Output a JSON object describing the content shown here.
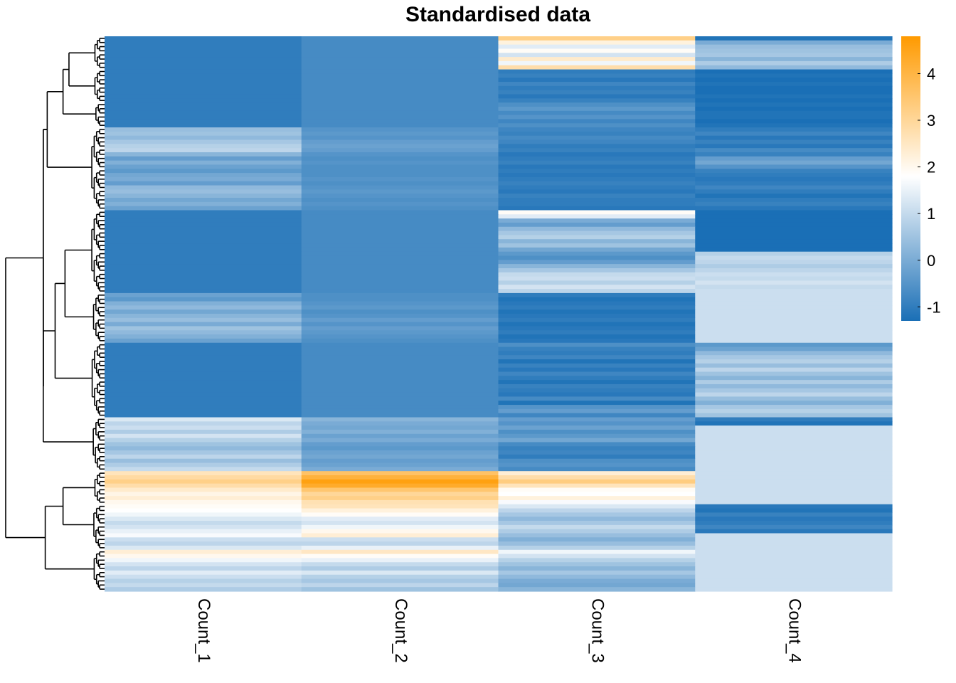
{
  "colors": {
    "low": "#1a6fb6",
    "mid": "#ffffff",
    "high": "#ff9a00",
    "background": "#ffffff",
    "dendrogram": "#000000"
  },
  "chart_data": {
    "type": "heatmap",
    "title": "Standardised data",
    "columns": [
      "Count_1",
      "Count_2",
      "Count_3",
      "Count_4"
    ],
    "row_labels_shown": false,
    "dendrogram": "rows",
    "legend": {
      "placement": "right",
      "ticks": [
        4,
        3,
        2,
        1,
        0,
        -1
      ],
      "range": [
        -1.3,
        4.8
      ],
      "midpoint": 1.8
    },
    "row_groups": [
      {
        "rows": 8,
        "values": [
          [
            -1.0,
            -0.7,
            3.2,
            -1.2
          ],
          [
            -1.0,
            -0.7,
            2.2,
            0.0
          ],
          [
            -1.0,
            -0.7,
            1.4,
            0.4
          ],
          [
            -1.0,
            -0.7,
            1.9,
            0.5
          ],
          [
            -1.0,
            -0.7,
            1.2,
            0.6
          ],
          [
            -1.0,
            -0.7,
            2.4,
            0.2
          ],
          [
            -1.0,
            -0.7,
            1.6,
            0.7
          ],
          [
            -1.0,
            -0.7,
            2.8,
            0.3
          ]
        ]
      },
      {
        "rows": 8,
        "values": [
          [
            -1.0,
            -0.7,
            -1.0,
            -1.3
          ],
          [
            -1.0,
            -0.7,
            -0.9,
            -1.2
          ],
          [
            -1.0,
            -0.7,
            -1.1,
            -1.3
          ],
          [
            -1.0,
            -0.7,
            -0.8,
            -1.2
          ],
          [
            -1.0,
            -0.7,
            -1.0,
            -1.3
          ],
          [
            -1.0,
            -0.7,
            -0.9,
            -1.3
          ],
          [
            -1.0,
            -0.7,
            -1.1,
            -1.2
          ],
          [
            -1.0,
            -0.7,
            -0.9,
            -1.3
          ]
        ]
      },
      {
        "rows": 6,
        "values": [
          [
            -1.0,
            -0.7,
            -0.6,
            -1.2
          ],
          [
            -1.0,
            -0.7,
            -0.4,
            -1.3
          ],
          [
            -1.0,
            -0.7,
            -0.7,
            -1.2
          ],
          [
            -1.0,
            -0.7,
            -0.5,
            -1.2
          ],
          [
            -1.0,
            -0.7,
            -0.8,
            -1.3
          ],
          [
            -1.0,
            -0.7,
            -0.6,
            -1.2
          ]
        ]
      },
      {
        "rows": 20,
        "values": [
          [
            0.4,
            -0.5,
            -0.8,
            -1.0
          ],
          [
            0.5,
            -0.4,
            -0.9,
            -0.8
          ],
          [
            0.3,
            -0.5,
            -0.7,
            -1.1
          ],
          [
            0.6,
            -0.3,
            -0.8,
            -0.9
          ],
          [
            0.8,
            -0.2,
            -1.0,
            -1.1
          ],
          [
            0.9,
            -0.3,
            -0.9,
            -0.7
          ],
          [
            0.2,
            -0.5,
            -1.1,
            -0.9
          ],
          [
            -0.3,
            -0.6,
            -1.0,
            -0.3
          ],
          [
            0.1,
            -0.5,
            -0.9,
            -0.1
          ],
          [
            -0.2,
            -0.6,
            -1.1,
            -0.5
          ],
          [
            -0.4,
            -0.6,
            -1.0,
            -0.9
          ],
          [
            -0.1,
            -0.6,
            -1.1,
            -1.0
          ],
          [
            0.0,
            -0.5,
            -1.0,
            -1.1
          ],
          [
            -0.3,
            -0.6,
            -0.9,
            -1.0
          ],
          [
            0.3,
            -0.5,
            -1.0,
            -0.8
          ],
          [
            0.4,
            -0.4,
            -1.1,
            -1.0
          ],
          [
            0.2,
            -0.5,
            -0.9,
            -1.2
          ],
          [
            -0.1,
            -0.6,
            -1.0,
            -1.0
          ],
          [
            0.1,
            -0.5,
            -1.0,
            -0.9
          ],
          [
            -0.2,
            -0.6,
            -1.1,
            -1.1
          ]
        ]
      },
      {
        "rows": 20,
        "values": [
          [
            -1.0,
            -0.7,
            1.9,
            -1.3
          ],
          [
            -1.0,
            -0.7,
            1.4,
            -1.3
          ],
          [
            -1.0,
            -0.7,
            0.0,
            -1.3
          ],
          [
            -1.0,
            -0.7,
            -0.3,
            -1.3
          ],
          [
            -1.0,
            -0.7,
            0.3,
            -1.3
          ],
          [
            -1.0,
            -0.7,
            0.6,
            -1.3
          ],
          [
            -1.0,
            -0.7,
            0.8,
            -1.3
          ],
          [
            -1.0,
            -0.7,
            0.2,
            -1.3
          ],
          [
            -1.0,
            -0.7,
            0.5,
            -1.3
          ],
          [
            -1.0,
            -0.7,
            -0.1,
            -1.3
          ],
          [
            -1.0,
            -0.7,
            -0.4,
            0.8
          ],
          [
            -1.0,
            -0.7,
            -0.6,
            1.0
          ],
          [
            -1.0,
            -0.7,
            -0.3,
            0.9
          ],
          [
            -1.0,
            -0.7,
            0.2,
            0.7
          ],
          [
            -1.0,
            -0.7,
            0.6,
            0.9
          ],
          [
            -1.0,
            -0.7,
            1.0,
            1.1
          ],
          [
            -1.0,
            -0.7,
            1.1,
            1.0
          ],
          [
            -1.0,
            -0.7,
            0.8,
            1.2
          ],
          [
            -1.0,
            -0.7,
            1.2,
            1.0
          ],
          [
            -1.0,
            -0.7,
            0.9,
            1.1
          ]
        ]
      },
      {
        "rows": 12,
        "values": [
          [
            -0.2,
            -0.6,
            -1.0,
            1.1
          ],
          [
            -0.4,
            -0.6,
            -1.2,
            1.1
          ],
          [
            0.1,
            -0.5,
            -1.1,
            1.1
          ],
          [
            0.3,
            -0.4,
            -1.0,
            1.1
          ],
          [
            -0.1,
            -0.6,
            -1.2,
            1.1
          ],
          [
            0.2,
            -0.5,
            -1.1,
            1.1
          ],
          [
            0.4,
            -0.3,
            -1.0,
            1.1
          ],
          [
            0.0,
            -0.5,
            -1.2,
            1.1
          ],
          [
            0.5,
            -0.3,
            -1.1,
            1.1
          ],
          [
            0.3,
            -0.4,
            -1.0,
            1.1
          ],
          [
            0.1,
            -0.5,
            -1.2,
            1.1
          ],
          [
            -0.2,
            -0.6,
            -1.1,
            1.1
          ]
        ]
      },
      {
        "rows": 18,
        "values": [
          [
            -1.0,
            -0.7,
            -0.6,
            -0.4
          ],
          [
            -1.0,
            -0.7,
            -0.9,
            -0.2
          ],
          [
            -1.0,
            -0.7,
            -1.0,
            0.3
          ],
          [
            -1.0,
            -0.7,
            -0.8,
            0.6
          ],
          [
            -1.0,
            -0.7,
            -1.2,
            0.8
          ],
          [
            -1.0,
            -0.7,
            -0.9,
            0.4
          ],
          [
            -1.0,
            -0.7,
            -1.1,
            0.9
          ],
          [
            -1.0,
            -0.7,
            -0.8,
            0.5
          ],
          [
            -1.0,
            -0.7,
            -1.0,
            0.2
          ],
          [
            -1.0,
            -0.7,
            -1.2,
            0.7
          ],
          [
            -1.0,
            -0.7,
            -0.9,
            0.3
          ],
          [
            -1.0,
            -0.7,
            -1.0,
            0.6
          ],
          [
            -1.0,
            -0.7,
            -1.1,
            0.9
          ],
          [
            -1.0,
            -0.7,
            -0.7,
            0.4
          ],
          [
            -1.0,
            -0.7,
            -1.2,
            0.1
          ],
          [
            -1.0,
            -0.7,
            -0.5,
            0.6
          ],
          [
            -1.0,
            -0.7,
            -0.3,
            0.8
          ],
          [
            -1.0,
            -0.7,
            -0.8,
            0.5
          ]
        ]
      },
      {
        "rows": 13,
        "values": [
          [
            1.3,
            0.2,
            -0.3,
            -1.0
          ],
          [
            0.9,
            0.0,
            -0.5,
            -1.2
          ],
          [
            1.1,
            -0.1,
            -0.2,
            1.1
          ],
          [
            0.7,
            0.1,
            -0.6,
            1.1
          ],
          [
            1.2,
            -0.2,
            -0.4,
            1.1
          ],
          [
            0.8,
            0.0,
            -0.1,
            1.1
          ],
          [
            0.5,
            -0.3,
            -0.7,
            1.1
          ],
          [
            0.3,
            -0.4,
            -0.9,
            1.1
          ],
          [
            0.6,
            -0.2,
            -0.8,
            1.1
          ],
          [
            0.9,
            -0.1,
            -1.0,
            1.1
          ],
          [
            0.4,
            -0.3,
            -0.6,
            1.1
          ],
          [
            0.7,
            -0.2,
            -0.5,
            1.1
          ],
          [
            1.0,
            0.0,
            -0.7,
            1.1
          ]
        ]
      },
      {
        "rows": 8,
        "values": [
          [
            2.6,
            3.6,
            2.3,
            1.1
          ],
          [
            2.9,
            4.1,
            2.8,
            1.1
          ],
          [
            3.2,
            4.6,
            3.3,
            1.1
          ],
          [
            2.8,
            4.3,
            2.6,
            1.1
          ],
          [
            2.4,
            3.5,
            1.9,
            1.1
          ],
          [
            2.1,
            3.0,
            1.8,
            1.1
          ],
          [
            2.3,
            3.2,
            2.2,
            1.1
          ],
          [
            2.0,
            2.7,
            1.7,
            1.1
          ]
        ]
      },
      {
        "rows": 11,
        "values": [
          [
            1.9,
            2.6,
            1.3,
            -1.1
          ],
          [
            1.8,
            2.2,
            0.9,
            -1.2
          ],
          [
            1.6,
            1.9,
            0.6,
            -0.9
          ],
          [
            1.3,
            1.4,
            0.3,
            -1.1
          ],
          [
            1.0,
            1.2,
            0.6,
            -1.0
          ],
          [
            1.2,
            1.6,
            1.0,
            -0.8
          ],
          [
            1.5,
            2.0,
            0.7,
            -1.1
          ],
          [
            1.7,
            2.3,
            0.4,
            1.1
          ],
          [
            1.1,
            1.1,
            0.1,
            1.1
          ],
          [
            0.9,
            0.9,
            0.4,
            1.1
          ],
          [
            1.3,
            1.5,
            0.8,
            1.1
          ]
        ]
      },
      {
        "rows": 10,
        "values": [
          [
            2.3,
            2.5,
            1.6,
            1.1
          ],
          [
            2.0,
            1.9,
            1.2,
            1.1
          ],
          [
            1.6,
            1.5,
            0.8,
            1.1
          ],
          [
            1.2,
            1.0,
            0.5,
            1.1
          ],
          [
            0.9,
            0.7,
            0.2,
            1.1
          ],
          [
            1.4,
            1.3,
            0.6,
            1.1
          ],
          [
            1.1,
            0.8,
            0.3,
            1.1
          ],
          [
            0.8,
            0.6,
            0.0,
            1.1
          ],
          [
            1.0,
            0.9,
            -0.1,
            1.1
          ],
          [
            0.7,
            0.5,
            0.2,
            1.1
          ]
        ]
      }
    ]
  }
}
